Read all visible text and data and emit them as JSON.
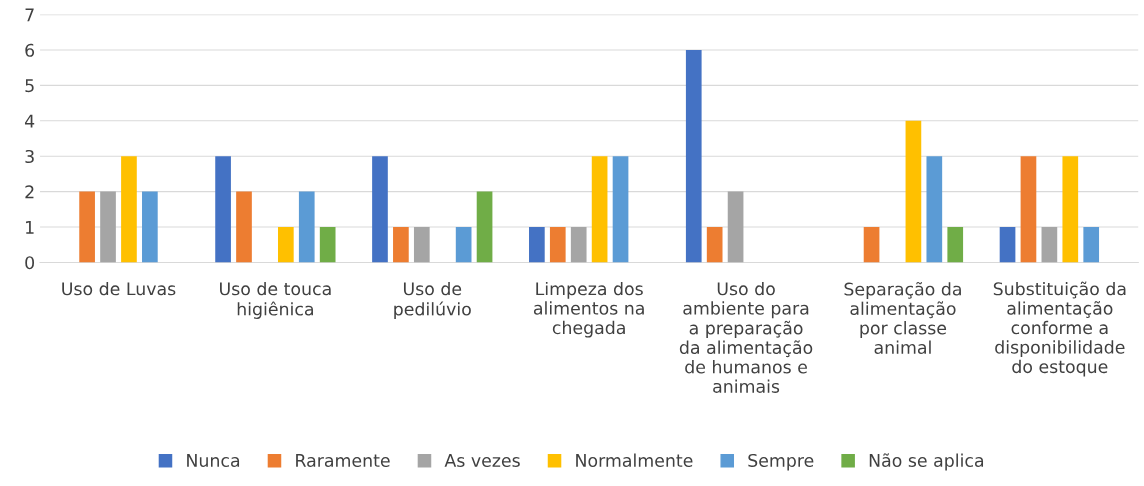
{
  "chart_data": {
    "type": "bar",
    "categories": [
      "Uso de Luvas",
      "Uso de touca\nhigiênica",
      "Uso de\npedilúvio",
      "Limpeza dos\nalimentos na\nchegada",
      "Uso do\nambiente para\na preparação\nda alimentação\nde humanos e\nanimais",
      "Separação da\nalimentação\npor classe\nanimal",
      "Substituição da\nalimentação\nconforme a\ndisponibilidade\ndo estoque"
    ],
    "series": [
      {
        "name": "Nunca",
        "color": "#4472c4",
        "values": [
          0,
          3,
          3,
          1,
          6,
          0,
          1
        ]
      },
      {
        "name": "Raramente",
        "color": "#ed7d31",
        "values": [
          2,
          2,
          1,
          1,
          1,
          1,
          3
        ]
      },
      {
        "name": "As vezes",
        "color": "#a5a5a5",
        "values": [
          2,
          0,
          1,
          1,
          2,
          0,
          1
        ]
      },
      {
        "name": "Normalmente",
        "color": "#ffc000",
        "values": [
          3,
          1,
          0,
          3,
          0,
          4,
          3
        ]
      },
      {
        "name": "Sempre",
        "color": "#5b9bd5",
        "values": [
          2,
          2,
          1,
          3,
          0,
          3,
          1
        ]
      },
      {
        "name": "Não se aplica",
        "color": "#70ad47",
        "values": [
          0,
          1,
          2,
          0,
          0,
          1,
          0
        ]
      }
    ],
    "ylim": [
      0,
      7
    ],
    "yticks": [
      0,
      1,
      2,
      3,
      4,
      5,
      6,
      7
    ],
    "grid": "y",
    "legend": "bottom"
  }
}
